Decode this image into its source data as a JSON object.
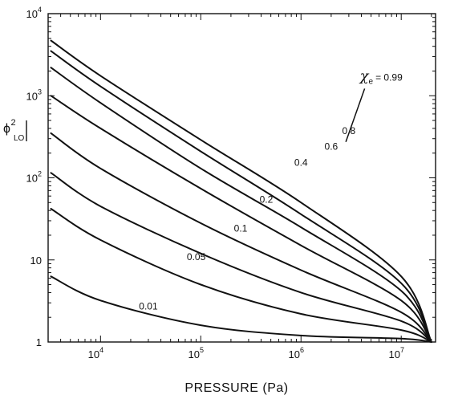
{
  "chart_data": {
    "type": "line",
    "x_scale": "log",
    "y_scale": "log",
    "xlabel": "PRESSURE (Pa)",
    "ylabel_main": "ϕ",
    "ylabel_sup": "2",
    "ylabel_sub": "LO",
    "xlim": [
      3000,
      22000000
    ],
    "ylim": [
      1,
      10000
    ],
    "x_ticks": [
      {
        "value": 10000,
        "base": "10",
        "exp": "4"
      },
      {
        "value": 100000,
        "base": "10",
        "exp": "5"
      },
      {
        "value": 1000000,
        "base": "10",
        "exp": "6"
      },
      {
        "value": 10000000,
        "base": "10",
        "exp": "7"
      }
    ],
    "y_ticks": [
      {
        "value": 1,
        "base": "1",
        "exp": ""
      },
      {
        "value": 10,
        "base": "10",
        "exp": ""
      },
      {
        "value": 100,
        "base": "10",
        "exp": "2"
      },
      {
        "value": 1000,
        "base": "10",
        "exp": "3"
      },
      {
        "value": 10000,
        "base": "10",
        "exp": "4"
      }
    ],
    "series": [
      {
        "name": "0.01",
        "label_at": {
          "x": 30000,
          "y": 2.5
        },
        "x": [
          3200,
          10000,
          100000,
          1000000,
          10000000,
          20000000
        ],
        "y": [
          6.3,
          3.2,
          1.6,
          1.2,
          1.1,
          1.0
        ]
      },
      {
        "name": "0.05",
        "label_at": {
          "x": 90000,
          "y": 10
        },
        "x": [
          3200,
          10000,
          100000,
          1000000,
          10000000,
          20000000
        ],
        "y": [
          42,
          17.5,
          5.0,
          2.2,
          1.4,
          1.0
        ]
      },
      {
        "name": "0.1",
        "label_at": {
          "x": 250000,
          "y": 22
        },
        "x": [
          3200,
          10000,
          100000,
          1000000,
          10000000,
          20000000
        ],
        "y": [
          115,
          45,
          12,
          4.0,
          1.8,
          1.0
        ]
      },
      {
        "name": "0.2",
        "label_at": {
          "x": 450000,
          "y": 50
        },
        "x": [
          3200,
          10000,
          100000,
          1000000,
          10000000,
          20000000
        ],
        "y": [
          350,
          130,
          28,
          7.5,
          2.3,
          1.0
        ]
      },
      {
        "name": "0.4",
        "label_at": {
          "x": 1000000,
          "y": 140
        },
        "x": [
          3200,
          10000,
          100000,
          1000000,
          10000000,
          20000000
        ],
        "y": [
          1000,
          400,
          74,
          15,
          3.2,
          1.0
        ]
      },
      {
        "name": "0.6",
        "label_at": {
          "x": 2000000,
          "y": 220
        },
        "x": [
          3200,
          10000,
          100000,
          1000000,
          10000000,
          20000000
        ],
        "y": [
          2200,
          820,
          130,
          25,
          4.2,
          1.0
        ]
      },
      {
        "name": "0.8",
        "label_at": {
          "x": 3000000,
          "y": 340
        },
        "x": [
          3200,
          10000,
          100000,
          1000000,
          10000000,
          20000000
        ],
        "y": [
          3500,
          1300,
          210,
          36,
          5.2,
          1.0
        ]
      },
      {
        "name": "0.99",
        "label_at": {
          "x": 5000000,
          "y": 1600
        },
        "x": [
          3200,
          10000,
          100000,
          1000000,
          10000000,
          20000000
        ],
        "y": [
          4700,
          1750,
          290,
          50,
          6.3,
          1.0
        ]
      }
    ],
    "annotation": {
      "symbol": "χ",
      "sub": "e",
      "text": "= 0.99"
    }
  }
}
